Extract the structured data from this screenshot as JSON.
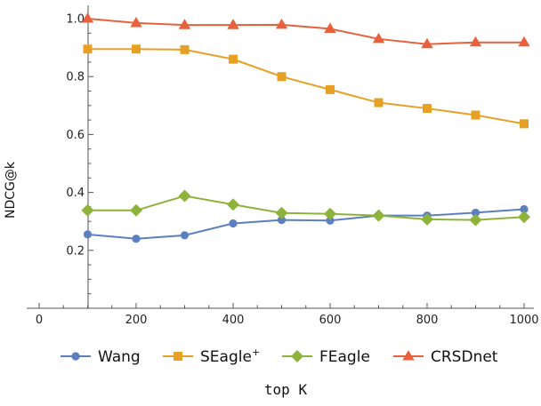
{
  "chart_data": {
    "type": "line",
    "xlabel": "top K",
    "ylabel": "NDCG@k",
    "xlim": [
      -20,
      1005
    ],
    "ylim": [
      0.0,
      1.06
    ],
    "x_ticks": [
      0,
      200,
      400,
      600,
      800,
      1000
    ],
    "y_ticks": [
      0.2,
      0.4,
      0.6,
      0.8,
      1.0
    ],
    "x_tick_labels": [
      "0",
      "200",
      "400",
      "600",
      "800",
      "1000"
    ],
    "y_tick_labels": [
      "0.2",
      "0.4",
      "0.6",
      "0.8",
      "1.0"
    ],
    "grid": false,
    "legend_position": "bottom",
    "x": [
      100,
      200,
      300,
      400,
      500,
      600,
      700,
      800,
      900,
      1000
    ],
    "series": [
      {
        "name": "Wang",
        "color": "#5b7fbf",
        "marker": "circle",
        "values": [
          0.255,
          0.24,
          0.252,
          0.293,
          0.305,
          0.303,
          0.32,
          0.32,
          0.33,
          0.342
        ]
      },
      {
        "name": "SEagle",
        "name_sup": "+",
        "color": "#e6a023",
        "marker": "square",
        "values": [
          0.895,
          0.895,
          0.893,
          0.86,
          0.8,
          0.755,
          0.71,
          0.69,
          0.667,
          0.637
        ]
      },
      {
        "name": "FEagle",
        "color": "#8db33a",
        "marker": "diamond",
        "values": [
          0.338,
          0.338,
          0.388,
          0.358,
          0.329,
          0.326,
          0.32,
          0.307,
          0.305,
          0.315
        ]
      },
      {
        "name": "CRSDnet",
        "color": "#e8603c",
        "marker": "triangle",
        "values": [
          1.0,
          0.985,
          0.978,
          0.978,
          0.979,
          0.965,
          0.93,
          0.912,
          0.918,
          0.918
        ]
      }
    ]
  }
}
